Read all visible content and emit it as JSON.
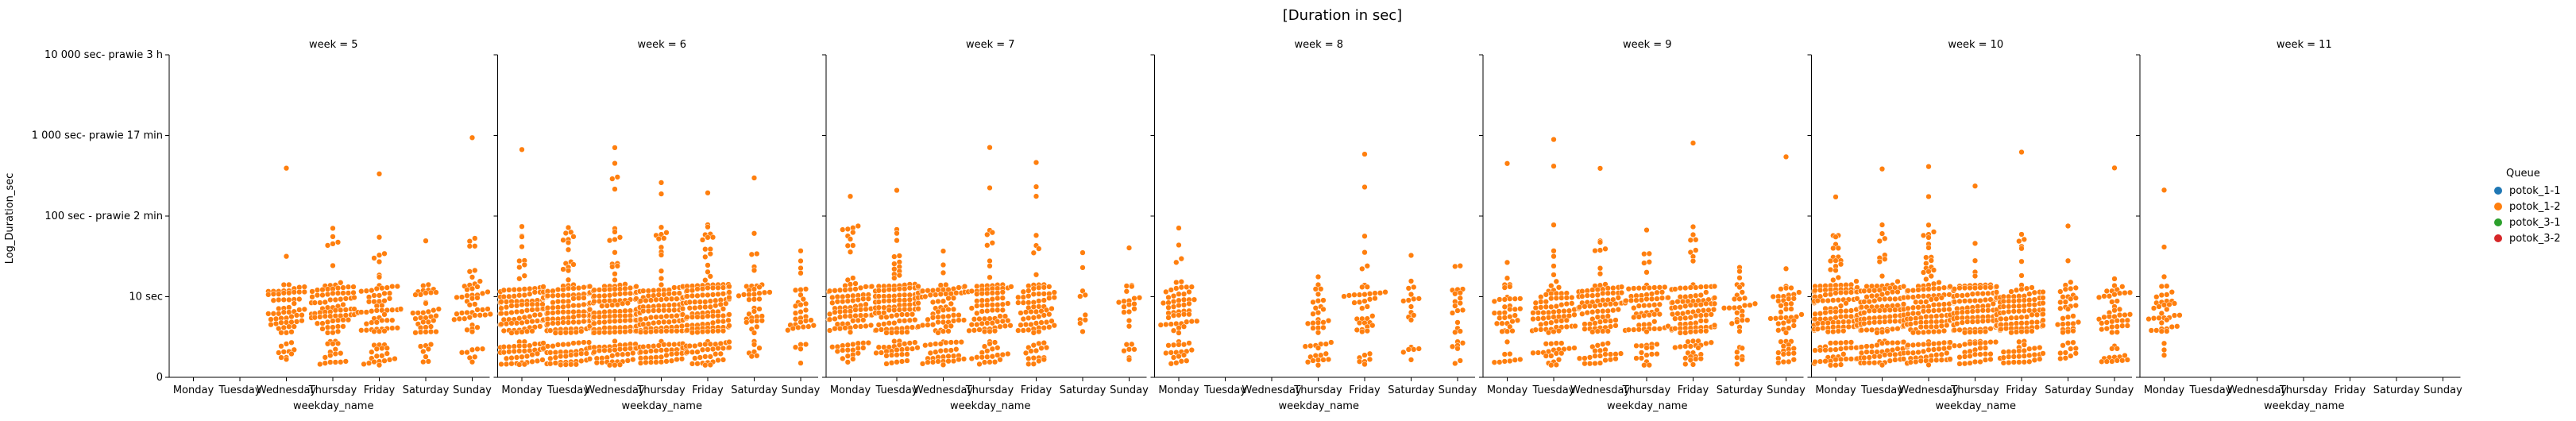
{
  "chart_data": {
    "type": "scatter",
    "title": "[Duration in sec]",
    "ylabel": "Log_Duration_sec",
    "xlabel": "weekday_name",
    "categories": [
      "Monday",
      "Tuesday",
      "Wednesday",
      "Thursday",
      "Friday",
      "Saturday",
      "Sunday"
    ],
    "y_scale": "log10(1 + seconds)",
    "ylim": [
      0,
      4
    ],
    "y_ticks": [
      {
        "value": 0,
        "label": "0"
      },
      {
        "value": 1,
        "label": "10 sec"
      },
      {
        "value": 2,
        "label": "100 sec - prawie 2 min"
      },
      {
        "value": 3,
        "label": "1 000 sec- prawie 17 min"
      },
      {
        "value": 4,
        "label": "10 000 sec- prawie 3 h"
      }
    ],
    "panels": [
      {
        "title": "week = 5",
        "counts": [
          0,
          0,
          70,
          95,
          80,
          45,
          55
        ]
      },
      {
        "title": "week = 6",
        "counts": [
          150,
          160,
          190,
          170,
          165,
          45,
          35
        ]
      },
      {
        "title": "week = 7",
        "counts": [
          110,
          150,
          95,
          100,
          85,
          10,
          25
        ]
      },
      {
        "title": "week = 8",
        "counts": [
          70,
          0,
          0,
          40,
          45,
          20,
          25
        ]
      },
      {
        "title": "week = 9",
        "counts": [
          45,
          95,
          105,
          85,
          115,
          35,
          55
        ]
      },
      {
        "title": "week = 10",
        "counts": [
          160,
          170,
          160,
          155,
          130,
          45,
          55
        ]
      },
      {
        "title": "week = 11",
        "counts": [
          40,
          0,
          0,
          0,
          0,
          0,
          0
        ]
      }
    ],
    "legend": {
      "title": "Queue",
      "placement": "right",
      "entries": [
        {
          "label": "potok_1-1",
          "color": "#1f77b4"
        },
        {
          "label": "potok_1-2",
          "color": "#ff7f0e"
        },
        {
          "label": "potok_3-1",
          "color": "#2ca02c"
        },
        {
          "label": "potok_3-2",
          "color": "#d62728"
        }
      ]
    },
    "point_color": "#ff7f0e",
    "grid": false
  }
}
